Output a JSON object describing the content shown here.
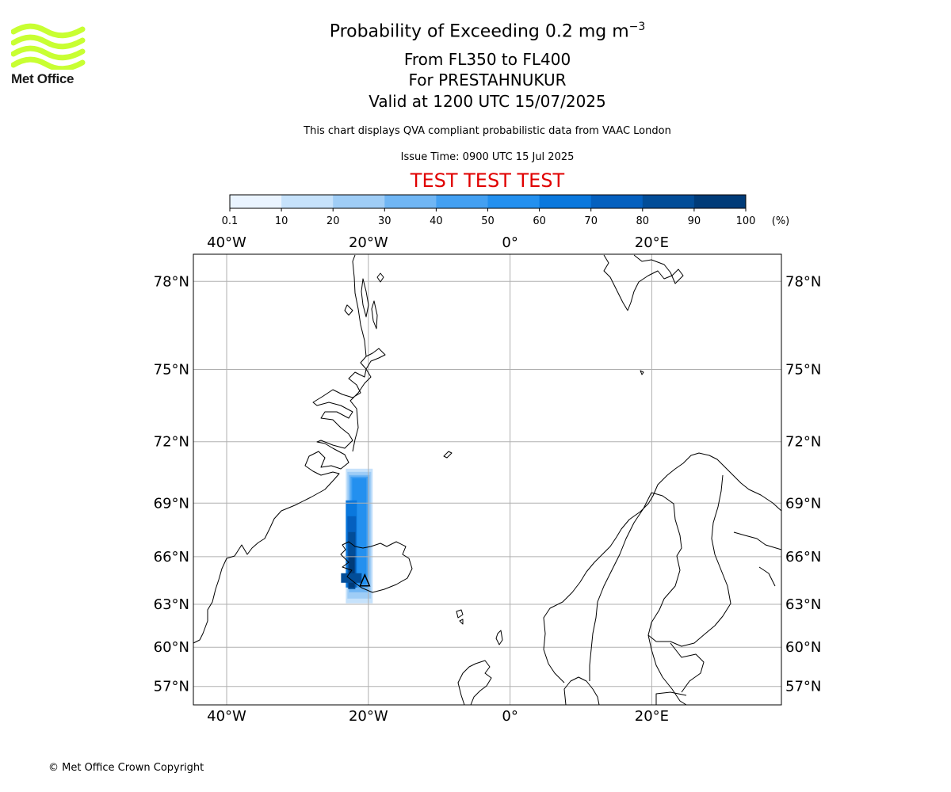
{
  "logo": {
    "text": "Met Office",
    "color": "#c8ff32"
  },
  "title": {
    "main": "Probability of Exceeding 0.2 mg m",
    "exponent": "−3",
    "levels": "From FL350 to FL400",
    "volcano": "For PRESTAHNUKUR",
    "valid": "Valid at 1200 UTC 15/07/2025"
  },
  "info": {
    "description": "This chart displays QVA compliant probabilistic data from VAAC London",
    "issue_time": "Issue Time: 0900 UTC 15 Jul 2025"
  },
  "banner": {
    "text": "TEST TEST TEST",
    "color": "#e00000"
  },
  "colorbar": {
    "ticks": [
      "0.1",
      "10",
      "20",
      "30",
      "40",
      "50",
      "60",
      "70",
      "80",
      "90",
      "100"
    ],
    "unit": "(%)",
    "colors": [
      "#eaf4ff",
      "#c6e2fb",
      "#9fcdf6",
      "#70b6f4",
      "#43a0f2",
      "#2390ef",
      "#0a78dd",
      "#0460bf",
      "#024d98",
      "#003b78"
    ]
  },
  "map": {
    "lon_range": [
      -44.7,
      38.3
    ],
    "lat_range": [
      55.5,
      78.8
    ],
    "lon_ticks": [
      {
        "lon": -40,
        "label": "40°W"
      },
      {
        "lon": -20,
        "label": "20°W"
      },
      {
        "lon": 0,
        "label": "0°"
      },
      {
        "lon": 20,
        "label": "20°E"
      }
    ],
    "lat_ticks": [
      {
        "lat": 78,
        "label": "78°N"
      },
      {
        "lat": 75,
        "label": "75°N"
      },
      {
        "lat": 72,
        "label": "72°N"
      },
      {
        "lat": 69,
        "label": "69°N"
      },
      {
        "lat": 66,
        "label": "66°N"
      },
      {
        "lat": 63,
        "label": "63°N"
      },
      {
        "lat": 60,
        "label": "60°N"
      },
      {
        "lat": 57,
        "label": "57°N"
      }
    ],
    "volcano": {
      "name": "PRESTAHNUKUR",
      "lat": 64.6,
      "lon": -20.5
    }
  },
  "copyright": "© Met Office Crown Copyright"
}
